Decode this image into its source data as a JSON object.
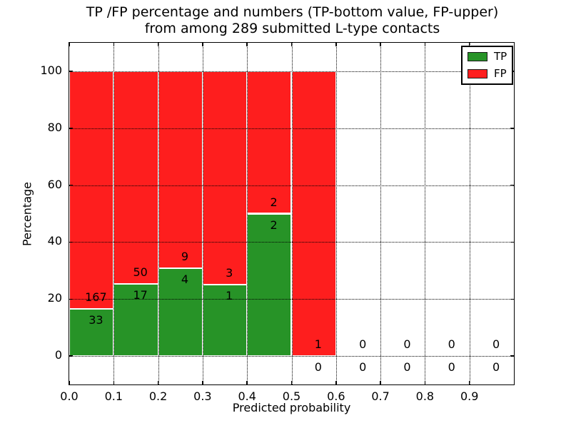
{
  "chart_data": {
    "type": "bar",
    "stacked": true,
    "title_lines": [
      "TP /FP percentage and numbers (TP-bottom value, FP-upper)",
      "from among 289 submitted L-type contacts"
    ],
    "total_contacts": 289,
    "xlabel": "Predicted probability",
    "ylabel": "Percentage",
    "xlim": [
      0.0,
      1.0
    ],
    "ylim": [
      -10,
      110
    ],
    "xticks": [
      {
        "value": 0.0,
        "label": "0.0"
      },
      {
        "value": 0.1,
        "label": "0.1"
      },
      {
        "value": 0.2,
        "label": "0.2"
      },
      {
        "value": 0.3,
        "label": "0.3"
      },
      {
        "value": 0.4,
        "label": "0.4"
      },
      {
        "value": 0.5,
        "label": "0.5"
      },
      {
        "value": 0.6,
        "label": "0.6"
      },
      {
        "value": 0.7,
        "label": "0.7"
      },
      {
        "value": 0.8,
        "label": "0.8"
      },
      {
        "value": 0.9,
        "label": "0.9"
      }
    ],
    "yticks": [
      {
        "value": 0,
        "label": "0"
      },
      {
        "value": 20,
        "label": "20"
      },
      {
        "value": 40,
        "label": "40"
      },
      {
        "value": 60,
        "label": "60"
      },
      {
        "value": 80,
        "label": "80"
      },
      {
        "value": 100,
        "label": "100"
      }
    ],
    "grid": {
      "visible": true,
      "linestyle": "dotted",
      "color": "#000000"
    },
    "colors": {
      "tp": "#279327",
      "fp": "#fe1e1e",
      "bar_edge": "#ffffff"
    },
    "legend": {
      "location": "upper right",
      "entries": [
        {
          "label": "TP",
          "series": "tp"
        },
        {
          "label": "FP",
          "series": "fp"
        }
      ]
    },
    "bins": [
      {
        "range": "0.0-0.1",
        "x0": 0.0,
        "x1": 0.1,
        "tp": 33,
        "fp": 167,
        "tp_pct": 16.5,
        "fp_pct": 83.5
      },
      {
        "range": "0.1-0.2",
        "x0": 0.1,
        "x1": 0.2,
        "tp": 17,
        "fp": 50,
        "tp_pct": 25.4,
        "fp_pct": 74.6
      },
      {
        "range": "0.2-0.3",
        "x0": 0.2,
        "x1": 0.3,
        "tp": 4,
        "fp": 9,
        "tp_pct": 30.8,
        "fp_pct": 69.2
      },
      {
        "range": "0.3-0.4",
        "x0": 0.3,
        "x1": 0.4,
        "tp": 1,
        "fp": 3,
        "tp_pct": 25.0,
        "fp_pct": 75.0
      },
      {
        "range": "0.4-0.5",
        "x0": 0.4,
        "x1": 0.5,
        "tp": 2,
        "fp": 2,
        "tp_pct": 50.0,
        "fp_pct": 50.0
      },
      {
        "range": "0.5-0.6",
        "x0": 0.5,
        "x1": 0.6,
        "tp": 0,
        "fp": 1,
        "tp_pct": 0.0,
        "fp_pct": 100.0
      },
      {
        "range": "0.6-0.7",
        "x0": 0.6,
        "x1": 0.7,
        "tp": 0,
        "fp": 0,
        "tp_pct": null,
        "fp_pct": null
      },
      {
        "range": "0.7-0.8",
        "x0": 0.7,
        "x1": 0.8,
        "tp": 0,
        "fp": 0,
        "tp_pct": null,
        "fp_pct": null
      },
      {
        "range": "0.8-0.9",
        "x0": 0.8,
        "x1": 0.9,
        "tp": 0,
        "fp": 0,
        "tp_pct": null,
        "fp_pct": null
      },
      {
        "range": "0.9-1.0",
        "x0": 0.9,
        "x1": 1.0,
        "tp": 0,
        "fp": 0,
        "tp_pct": null,
        "fp_pct": null
      }
    ]
  }
}
